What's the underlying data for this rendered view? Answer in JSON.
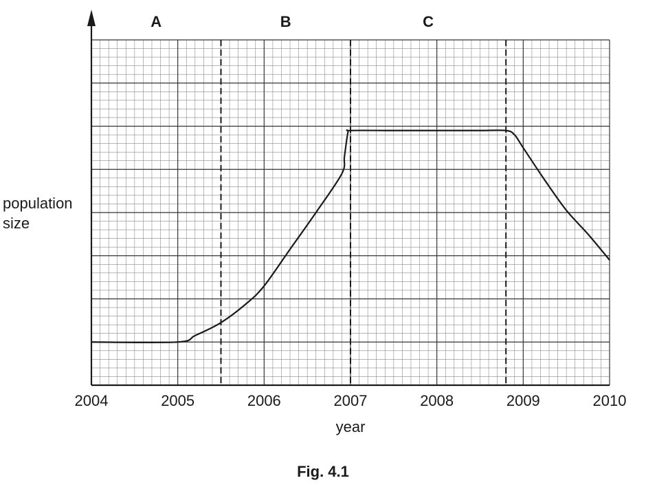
{
  "chart_data": {
    "type": "line",
    "caption": "Fig. 4.1",
    "xlabel": "year",
    "ylabel": "population size",
    "xlim": [
      2004,
      2010
    ],
    "x_ticks": [
      "2004",
      "2005",
      "2006",
      "2007",
      "2008",
      "2009",
      "2010"
    ],
    "ylim": [
      0,
      8
    ],
    "grid": true,
    "regions": [
      {
        "label": "A",
        "from": 2004,
        "to": 2005.5
      },
      {
        "label": "B",
        "from": 2005.5,
        "to": 2007
      },
      {
        "label": "C",
        "from": 2007,
        "to": 2008.8
      }
    ],
    "boundaries": [
      2005.5,
      2007,
      2008.8
    ],
    "series": [
      {
        "x": [
          2004,
          2005,
          2005.2,
          2005.5,
          2005.8,
          2006,
          2006.3,
          2006.6,
          2006.9,
          2006.93,
          2006.97,
          2007,
          2007.5,
          2008,
          2008.5,
          2008.8,
          2008.9,
          2009,
          2009.25,
          2009.5,
          2009.75,
          2010
        ],
        "y": [
          1.0,
          1.0,
          1.15,
          1.45,
          1.9,
          2.3,
          3.15,
          4.0,
          4.9,
          5.3,
          5.85,
          5.9,
          5.9,
          5.9,
          5.9,
          5.9,
          5.8,
          5.5,
          4.75,
          4.05,
          3.5,
          2.9
        ]
      }
    ]
  }
}
